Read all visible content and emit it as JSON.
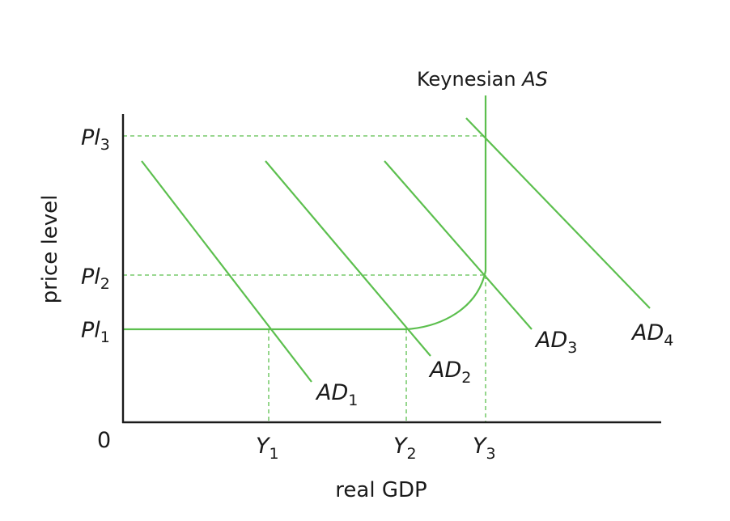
{
  "colors": {
    "curve": "#5cbf4e",
    "axis": "#1a1a1a",
    "text": "#1a1a1a",
    "background": "#ffffff"
  },
  "axes": {
    "x_title": "real GDP",
    "y_title": "price level",
    "origin": "0"
  },
  "price_levels": [
    {
      "main": "Pl",
      "sub": "1"
    },
    {
      "main": "Pl",
      "sub": "2"
    },
    {
      "main": "Pl",
      "sub": "3"
    }
  ],
  "output_levels": [
    {
      "main": "Y",
      "sub": "1"
    },
    {
      "main": "Y",
      "sub": "2"
    },
    {
      "main": "Y",
      "sub": "3"
    }
  ],
  "as_curve": {
    "label_prefix": "Keynesian ",
    "label_italic": "AS"
  },
  "ad_curves": [
    {
      "main": "AD",
      "sub": "1"
    },
    {
      "main": "AD",
      "sub": "2"
    },
    {
      "main": "AD",
      "sub": "3"
    },
    {
      "main": "AD",
      "sub": "4"
    }
  ]
}
